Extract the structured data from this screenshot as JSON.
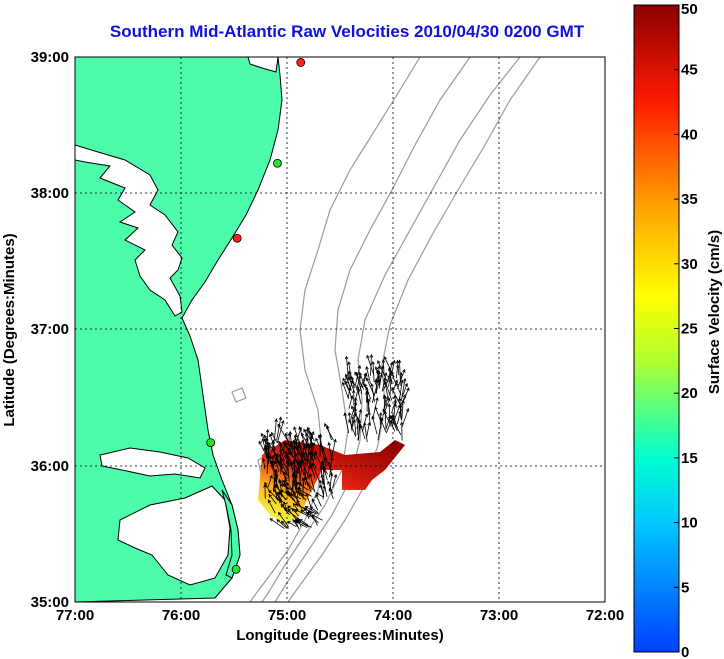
{
  "title": "Southern Mid-Atlantic Raw Velocities 2010/04/30 0200 GMT",
  "chart_data": {
    "type": "map",
    "xlabel": "Longitude (Degrees:Minutes)",
    "ylabel": "Latitude (Degrees:Minutes)",
    "x_ticks": [
      "77:00",
      "76:00",
      "75:00",
      "74:00",
      "73:00",
      "72:00"
    ],
    "y_ticks": [
      "39:00",
      "38:00",
      "37:00",
      "36:00",
      "35:00"
    ],
    "xlim": [
      -77,
      -72
    ],
    "ylim": [
      35,
      39
    ],
    "grid": true,
    "colorbar": {
      "label": "Surface Velocity (cm/s)",
      "range": [
        0,
        50
      ],
      "ticks": [
        "50",
        "45",
        "40",
        "35",
        "30",
        "25",
        "20",
        "15",
        "10",
        "5",
        "0"
      ]
    },
    "stations": [
      {
        "lon": -74.87,
        "lat": 38.96,
        "color": "#ff2020"
      },
      {
        "lon": -75.09,
        "lat": 38.22,
        "color": "#30e030"
      },
      {
        "lon": -75.47,
        "lat": 37.67,
        "color": "#ff2020"
      },
      {
        "lon": -75.72,
        "lat": 36.17,
        "color": "#30e030"
      },
      {
        "lon": -75.48,
        "lat": 35.24,
        "color": "#30e030"
      }
    ],
    "colors": {
      "land": "#4dfcab",
      "water": "#ffffff",
      "coastline": "#000000",
      "bathymetry": "#9a9a9a",
      "grid": "#000000",
      "title": "#1010e0"
    }
  }
}
